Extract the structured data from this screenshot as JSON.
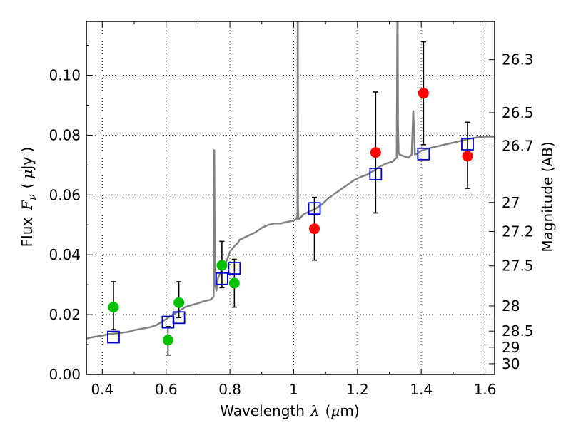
{
  "chart_data": {
    "type": "scatter",
    "title": "",
    "xlabel": "Wavelength",
    "xlabel_symbol": "λ",
    "xlabel_unit_open": "(",
    "xlabel_unit_mu": "μ",
    "xlabel_unit_m": "m)",
    "ylabel": "Flux",
    "ylabel_symbol": "F",
    "ylabel_subscript": "ν",
    "ylabel_unit_open": "(",
    "ylabel_unit_mu": "μ",
    "ylabel_unit_rest": "Jy )",
    "y2label": "Magnitude (AB)",
    "xlim": [
      0.35,
      1.63
    ],
    "ylim": [
      0.0,
      0.118
    ],
    "grid": true,
    "colors": {
      "model": "#808080",
      "green": "#00c000",
      "red": "#ff0000",
      "box": "#0000cc",
      "errorbar": "#000000"
    },
    "x_ticks": [
      0.4,
      0.6,
      0.8,
      1.0,
      1.2,
      1.4,
      1.6
    ],
    "x_tick_labels": [
      "0.4",
      "0.6",
      "0.8",
      "1",
      "1.2",
      "1.4",
      "1.6"
    ],
    "y_ticks": [
      0.0,
      0.02,
      0.04,
      0.06,
      0.08,
      0.1
    ],
    "y_tick_labels": [
      "0.00",
      "0.02",
      "0.04",
      "0.06",
      "0.08",
      "0.10"
    ],
    "mag_ticks": [
      {
        "label": "26.3",
        "flux": 0.1052
      },
      {
        "label": "26.5",
        "flux": 0.0875
      },
      {
        "label": "26.7",
        "flux": 0.0764
      },
      {
        "label": "27",
        "flux": 0.0575
      },
      {
        "label": "27.2",
        "flux": 0.0478
      },
      {
        "label": "27.5",
        "flux": 0.0363
      },
      {
        "label": "28",
        "flux": 0.0229
      },
      {
        "label": "28.5",
        "flux": 0.0145
      },
      {
        "label": "29",
        "flux": 0.0091
      },
      {
        "label": "30",
        "flux": 0.0036
      }
    ],
    "series": [
      {
        "kind": "points",
        "color": "green",
        "marker": "circle",
        "points": [
          {
            "x": 0.435,
            "y": 0.0225,
            "yerr_low": 0.0075,
            "yerr_high": 0.0085
          },
          {
            "x": 0.606,
            "y": 0.0115,
            "yerr_low": 0.005,
            "yerr_high": 0.0045
          },
          {
            "x": 0.64,
            "y": 0.024,
            "yerr_low": 0.005,
            "yerr_high": 0.007
          },
          {
            "x": 0.775,
            "y": 0.0365,
            "yerr_low": 0.0075,
            "yerr_high": 0.008
          },
          {
            "x": 0.814,
            "y": 0.0305,
            "yerr_low": 0.008,
            "yerr_high": 0.008
          }
        ]
      },
      {
        "kind": "points",
        "color": "red",
        "marker": "circle",
        "points": [
          {
            "x": 1.065,
            "y": 0.0487,
            "yerr_low": 0.0105,
            "yerr_high": 0.0105
          },
          {
            "x": 1.257,
            "y": 0.0742,
            "yerr_low": 0.0202,
            "yerr_high": 0.0202
          },
          {
            "x": 1.407,
            "y": 0.094,
            "yerr_low": 0.0172,
            "yerr_high": 0.0172
          },
          {
            "x": 1.545,
            "y": 0.073,
            "yerr_low": 0.0108,
            "yerr_high": 0.0113
          }
        ]
      },
      {
        "kind": "model_photometry",
        "color": "box",
        "marker": "square",
        "points": [
          {
            "x": 0.435,
            "y": 0.0125
          },
          {
            "x": 0.606,
            "y": 0.0175
          },
          {
            "x": 0.64,
            "y": 0.019
          },
          {
            "x": 0.775,
            "y": 0.032
          },
          {
            "x": 0.814,
            "y": 0.0355
          },
          {
            "x": 1.065,
            "y": 0.0555
          },
          {
            "x": 1.257,
            "y": 0.067
          },
          {
            "x": 1.407,
            "y": 0.0737
          },
          {
            "x": 1.545,
            "y": 0.077
          }
        ]
      },
      {
        "kind": "spectrum",
        "color": "model",
        "x": [
          0.35,
          0.37,
          0.4,
          0.42,
          0.45,
          0.48,
          0.5,
          0.52,
          0.55,
          0.57,
          0.58,
          0.6,
          0.62,
          0.64,
          0.66,
          0.68,
          0.7,
          0.72,
          0.74,
          0.749,
          0.751,
          0.753,
          0.756,
          0.758,
          0.762,
          0.77,
          0.775,
          0.78,
          0.79,
          0.8,
          0.815,
          0.825,
          0.83,
          0.84,
          0.86,
          0.88,
          0.9,
          0.92,
          0.94,
          0.96,
          0.98,
          1.0,
          1.01,
          1.012,
          1.0125,
          1.013,
          1.0135,
          1.015,
          1.018,
          1.03,
          1.05,
          1.07,
          1.09,
          1.11,
          1.13,
          1.15,
          1.17,
          1.19,
          1.21,
          1.23,
          1.25,
          1.27,
          1.29,
          1.31,
          1.323,
          1.325,
          1.326,
          1.327,
          1.329,
          1.332,
          1.345,
          1.36,
          1.37,
          1.375,
          1.38,
          1.39,
          1.4,
          1.42,
          1.44,
          1.46,
          1.48,
          1.5,
          1.52,
          1.54,
          1.56,
          1.58,
          1.6,
          1.62,
          1.63
        ],
        "y": [
          0.012,
          0.0125,
          0.013,
          0.0135,
          0.0138,
          0.0142,
          0.0148,
          0.0152,
          0.0158,
          0.0165,
          0.0172,
          0.0185,
          0.02,
          0.0212,
          0.0225,
          0.0232,
          0.0238,
          0.0245,
          0.025,
          0.026,
          0.075,
          0.03,
          0.029,
          0.028,
          0.032,
          0.034,
          0.035,
          0.036,
          0.038,
          0.041,
          0.043,
          0.044,
          0.045,
          0.0455,
          0.0465,
          0.0475,
          0.049,
          0.05,
          0.0505,
          0.0505,
          0.051,
          0.0515,
          0.052,
          0.054,
          0.118,
          0.118,
          0.056,
          0.052,
          0.052,
          0.0535,
          0.0545,
          0.0555,
          0.057,
          0.059,
          0.0605,
          0.062,
          0.0635,
          0.065,
          0.066,
          0.0668,
          0.068,
          0.0695,
          0.0705,
          0.0712,
          0.0725,
          0.118,
          0.118,
          0.084,
          0.074,
          0.0735,
          0.073,
          0.0725,
          0.0735,
          0.088,
          0.0735,
          0.074,
          0.0748,
          0.0755,
          0.076,
          0.0765,
          0.077,
          0.0775,
          0.078,
          0.0785,
          0.079,
          0.0793,
          0.0795,
          0.0795,
          0.0795
        ]
      }
    ]
  }
}
